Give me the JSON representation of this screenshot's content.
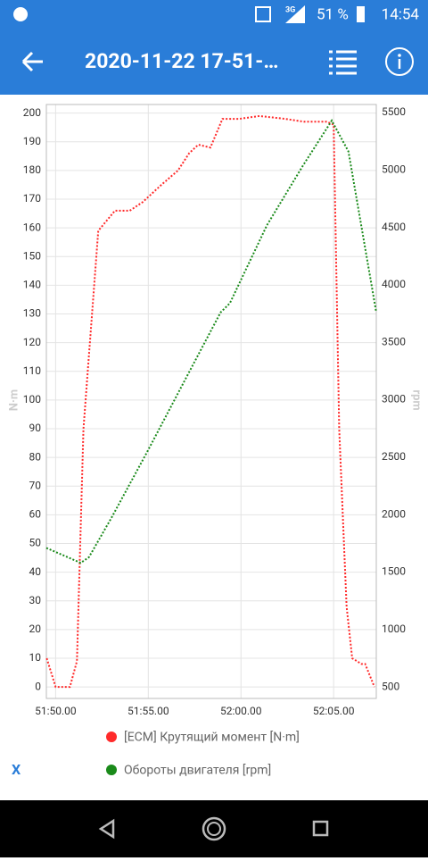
{
  "status_bar": {
    "network": "3G",
    "battery": "51 %",
    "time": "14:54"
  },
  "app_bar": {
    "title": "2020-11-22 17-51-…"
  },
  "chart_data": {
    "type": "line",
    "ylabel": "N·m",
    "y2label": "rpm",
    "xlim": [
      3109.5,
      3127.3
    ],
    "xticks": [
      {
        "value": 3110,
        "label": "51:50.00"
      },
      {
        "value": 3115,
        "label": "51:55.00"
      },
      {
        "value": 3120,
        "label": "52:00.00"
      },
      {
        "value": 3125,
        "label": "52:05.00"
      }
    ],
    "ylim": [
      -4,
      203
    ],
    "yticks": [
      0,
      10,
      20,
      30,
      40,
      50,
      60,
      70,
      80,
      90,
      100,
      110,
      120,
      130,
      140,
      150,
      160,
      170,
      180,
      190,
      200
    ],
    "y2lim": [
      400,
      5570
    ],
    "y2ticks": [
      500,
      1000,
      1500,
      2000,
      2500,
      3000,
      3500,
      4000,
      4500,
      5000,
      5500
    ],
    "grid": true,
    "series": [
      {
        "name": "[ECM] Крутящий момент [N·m]",
        "color": "#ff2a2a",
        "x": [
          3109.52,
          3110.0,
          3110.77,
          3111.15,
          3111.5,
          3112.3,
          3113.2,
          3114.0,
          3114.7,
          3115.7,
          3116.6,
          3117.2,
          3117.7,
          3118.35,
          3119.0,
          3119.9,
          3121.0,
          3122.4,
          3123.4,
          3124.6,
          3125.0,
          3125.3,
          3125.7,
          3126.0,
          3126.5,
          3126.7,
          3127.2
        ],
        "values": [
          10,
          0,
          0,
          9,
          90,
          159,
          166,
          166,
          169,
          175,
          180,
          186,
          189,
          188,
          198,
          198,
          199,
          198,
          197,
          197,
          196,
          90,
          28,
          10,
          8,
          8,
          0
        ]
      },
      {
        "name": "Обороты двигателя [rpm]",
        "color": "#1a8a1a",
        "axis": "y2",
        "x": [
          3109.5,
          3111.35,
          3111.8,
          3113.0,
          3114.95,
          3117.1,
          3118.9,
          3119.4,
          3121.4,
          3123.35,
          3124.9,
          3125.8,
          3127.3
        ],
        "values": [
          1710,
          1580,
          1630,
          1970,
          2550,
          3210,
          3760,
          3840,
          4520,
          5040,
          5430,
          5160,
          3760
        ]
      }
    ]
  },
  "side_button": "X"
}
